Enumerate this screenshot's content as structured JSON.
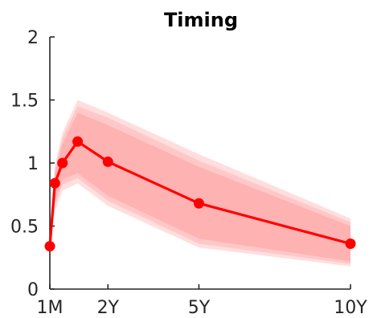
{
  "chart_data": {
    "type": "line",
    "title": "Timing",
    "xlabel": "",
    "ylabel": "",
    "x_tick_labels": [
      "1M",
      "2Y",
      "5Y",
      "10Y"
    ],
    "x_tick_values": [
      0.0833,
      2,
      5,
      10
    ],
    "y_tick_labels": [
      "0",
      "0.5",
      "1",
      "1.5",
      "2"
    ],
    "y_tick_values": [
      0,
      0.5,
      1,
      1.5,
      2
    ],
    "xlim": [
      0.0833,
      10
    ],
    "ylim": [
      0,
      2
    ],
    "grid": false,
    "series": [
      {
        "color": "#ff0000",
        "x": [
          0.0833,
          0.25,
          0.5,
          1,
          2,
          5,
          10
        ],
        "y": [
          0.34,
          0.84,
          1.0,
          1.17,
          1.01,
          0.68,
          0.36
        ]
      }
    ],
    "bands": [
      {
        "color": "#ffdede",
        "x": [
          0.0833,
          0.25,
          0.5,
          1,
          2,
          5,
          10
        ],
        "lower": [
          0.33,
          0.62,
          0.78,
          0.84,
          0.66,
          0.33,
          0.18
        ],
        "upper": [
          0.35,
          0.98,
          1.24,
          1.5,
          1.4,
          1.07,
          0.56
        ]
      },
      {
        "color": "#ffc8c8",
        "x": [
          0.0833,
          0.25,
          0.5,
          1,
          2,
          5,
          10
        ],
        "lower": [
          0.335,
          0.66,
          0.83,
          0.88,
          0.7,
          0.36,
          0.2
        ],
        "upper": [
          0.345,
          0.95,
          1.2,
          1.45,
          1.36,
          1.02,
          0.53
        ]
      },
      {
        "color": "#ffb2b2",
        "x": [
          0.0833,
          0.25,
          0.5,
          1,
          2,
          5,
          10
        ],
        "lower": [
          0.338,
          0.7,
          0.87,
          0.92,
          0.74,
          0.4,
          0.22
        ],
        "upper": [
          0.342,
          0.92,
          1.15,
          1.4,
          1.3,
          0.97,
          0.5
        ]
      }
    ]
  }
}
